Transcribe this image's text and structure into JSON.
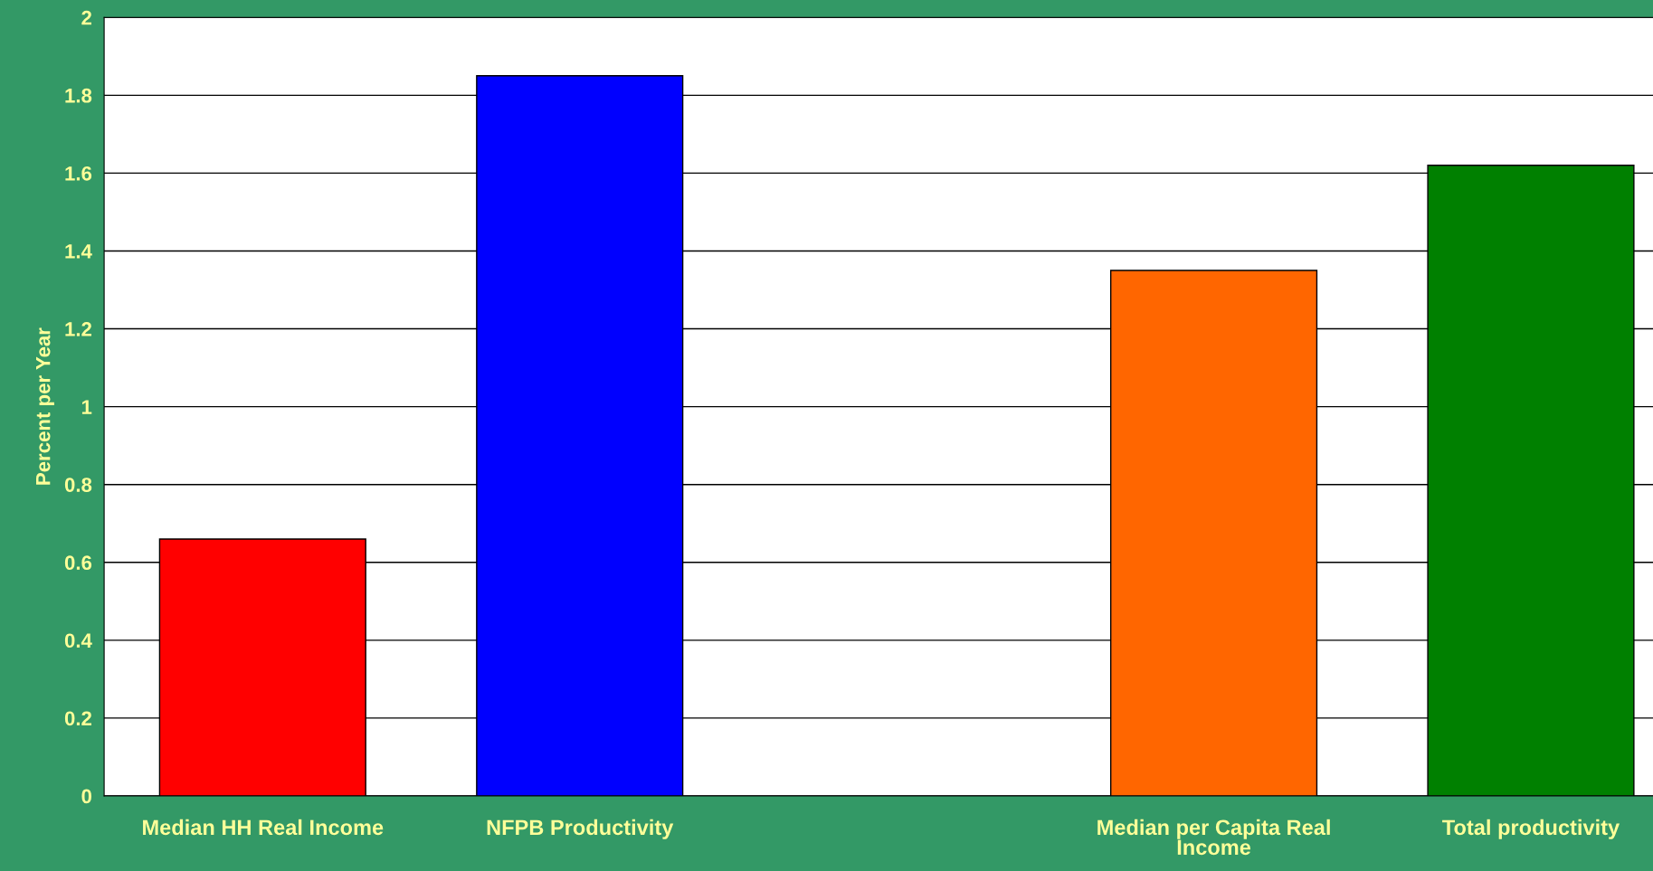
{
  "chart_data": {
    "type": "bar",
    "ylabel": "Percent per Year",
    "categories": [
      "Median HH Real Income",
      "NFPB Productivity",
      null,
      "Median per Capita Real Income",
      "Total productivity"
    ],
    "values": [
      0.66,
      1.85,
      null,
      1.35,
      1.62
    ],
    "colors": [
      "#ff0000",
      "#0000ff",
      "#ffffff",
      "#ff6600",
      "#008000"
    ],
    "ylim": [
      0,
      2
    ],
    "yticks": [
      0,
      0.2,
      0.4,
      0.6,
      0.8,
      1,
      1.2,
      1.4,
      1.6,
      1.8,
      2
    ],
    "grid": "y"
  }
}
